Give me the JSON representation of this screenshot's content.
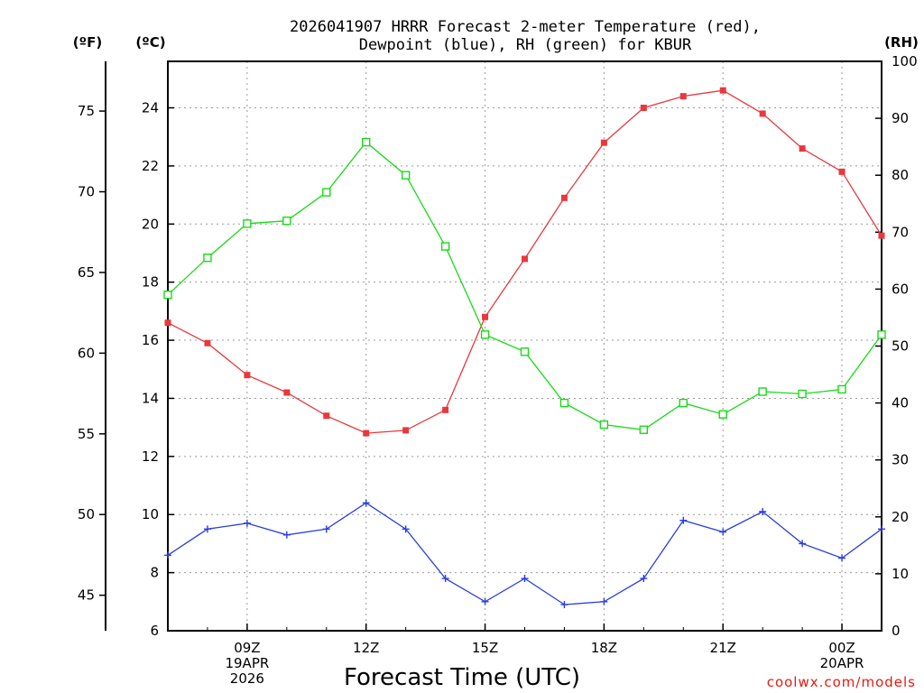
{
  "chart_data": {
    "type": "line",
    "title": [
      "2026041907 HRRR Forecast 2-meter Temperature (red),",
      "Dewpoint (blue), RH (green) for KBUR"
    ],
    "xlabel": "Forecast Time (UTC)",
    "credit": "coolwx.com/models",
    "units": {
      "fahrenheit": "(ºF)",
      "celsius": "(ºC)",
      "rh": "(RH)"
    },
    "hours": [
      7,
      8,
      9,
      10,
      11,
      12,
      13,
      14,
      15,
      16,
      17,
      18,
      19,
      20,
      21,
      22,
      23,
      24,
      25
    ],
    "xlim": [
      7,
      25
    ],
    "x_ticks": [
      {
        "hour": 9,
        "lines": [
          "09Z",
          "19APR",
          "2026"
        ]
      },
      {
        "hour": 12,
        "lines": [
          "12Z"
        ]
      },
      {
        "hour": 15,
        "lines": [
          "15Z"
        ]
      },
      {
        "hour": 18,
        "lines": [
          "18Z"
        ]
      },
      {
        "hour": 21,
        "lines": [
          "21Z"
        ]
      },
      {
        "hour": 24,
        "lines": [
          "00Z",
          "20APR"
        ]
      }
    ],
    "y_celsius": {
      "range": [
        6,
        25.6
      ],
      "ticks": [
        6,
        8,
        10,
        12,
        14,
        16,
        18,
        20,
        22,
        24
      ]
    },
    "y_fahrenheit": {
      "range": [
        42.8,
        78.08
      ],
      "ticks": [
        45,
        50,
        55,
        60,
        65,
        70,
        75
      ]
    },
    "y_rh": {
      "range": [
        0,
        100
      ],
      "ticks": [
        0,
        10,
        20,
        30,
        40,
        50,
        60,
        70,
        80,
        90,
        100
      ]
    },
    "series": [
      {
        "name": "Temperature",
        "axis": "celsius",
        "color": "#e8383d",
        "marker": "filled-square",
        "values": [
          16.6,
          15.9,
          14.8,
          14.2,
          13.4,
          12.8,
          12.9,
          13.6,
          16.8,
          18.8,
          20.9,
          22.8,
          24.0,
          24.4,
          24.6,
          23.8,
          22.6,
          21.8,
          19.6
        ]
      },
      {
        "name": "Dewpoint",
        "axis": "celsius",
        "color": "#2a3fe0",
        "marker": "plus",
        "values": [
          8.6,
          9.5,
          9.7,
          9.3,
          9.5,
          10.4,
          9.5,
          7.8,
          7.0,
          7.8,
          6.9,
          7.0,
          7.8,
          9.8,
          9.4,
          10.1,
          9.0,
          8.5,
          9.5
        ]
      },
      {
        "name": "RH",
        "axis": "rh",
        "color": "#19d919",
        "marker": "open-square",
        "values": [
          59,
          65.5,
          71.5,
          72,
          77,
          85.8,
          80,
          67.5,
          52,
          49,
          40,
          36.2,
          35.3,
          40,
          38,
          42,
          41.6,
          42.4,
          52
        ]
      }
    ]
  }
}
